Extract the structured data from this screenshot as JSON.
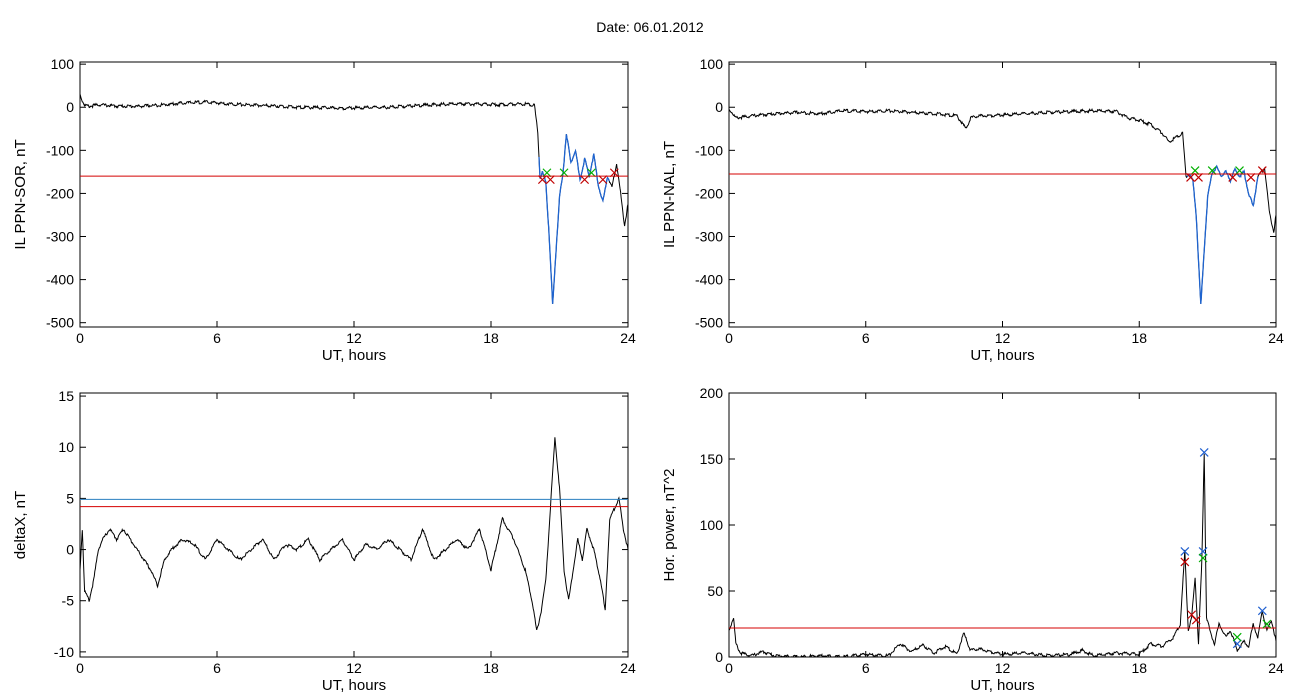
{
  "page": {
    "title": "Date:  06.01.2012"
  },
  "chart_data": [
    {
      "type": "line",
      "ylabel": "IL PPN-SOR, nT",
      "xlabel": "UT, hours",
      "xlim": [
        0,
        24
      ],
      "ylim": [
        -510,
        105
      ],
      "xticks": [
        0,
        6,
        12,
        18,
        24
      ],
      "yticks": [
        100,
        0,
        -100,
        -200,
        -300,
        -400,
        -500
      ],
      "colors": {
        "trace": "#000000",
        "highlight": "#1e64d0",
        "threshold": "#d40000",
        "mark_red": "#c00000",
        "mark_green": "#00b000",
        "mark_blue": "#2060d0"
      },
      "series": [
        {
          "x": [
            0,
            0.1,
            0.2,
            0.4,
            0.8,
            1.5,
            2.5,
            3.5,
            4.5,
            5.5,
            6.5,
            7.5,
            8.5,
            9.5,
            10.5,
            11.5,
            12.5,
            13.5,
            14.5,
            15.5,
            16.5,
            17.5,
            18.5,
            19.5,
            19.9,
            20.05,
            20.15,
            20.25,
            20.4,
            20.55,
            20.7,
            20.85,
            21.0,
            21.15,
            21.3,
            21.5,
            21.7,
            21.9,
            22.1,
            22.3,
            22.5,
            22.7,
            22.9,
            23.1,
            23.3,
            23.5,
            23.7,
            23.85,
            24.0
          ],
          "y": [
            30,
            15,
            5,
            2,
            6,
            3,
            2,
            5,
            10,
            12,
            8,
            5,
            3,
            0,
            -1,
            -2,
            -1,
            0,
            3,
            6,
            8,
            7,
            6,
            8,
            5,
            -60,
            -165,
            -150,
            -175,
            -300,
            -460,
            -330,
            -210,
            -155,
            -60,
            -130,
            -100,
            -170,
            -120,
            -160,
            -110,
            -180,
            -220,
            -160,
            -185,
            -130,
            -210,
            -275,
            -225
          ]
        }
      ],
      "threshold": -160,
      "highlight_from": 20.1
    },
    {
      "type": "line",
      "ylabel": "IL PPN-NAL, nT",
      "xlabel": "UT, hours",
      "xlim": [
        0,
        24
      ],
      "ylim": [
        -510,
        105
      ],
      "xticks": [
        0,
        6,
        12,
        18,
        24
      ],
      "yticks": [
        100,
        0,
        -100,
        -200,
        -300,
        -400,
        -500
      ],
      "series": [
        {
          "x": [
            0,
            0.1,
            0.3,
            1,
            2,
            3,
            4,
            5,
            6,
            7,
            8,
            9,
            10,
            10.4,
            10.6,
            11,
            12,
            13,
            14,
            15,
            16,
            17,
            17.5,
            18,
            18.5,
            19,
            19.3,
            19.6,
            19.9,
            20.05,
            20.2,
            20.35,
            20.5,
            20.7,
            20.85,
            21.0,
            21.2,
            21.4,
            21.6,
            21.8,
            22.0,
            22.2,
            22.4,
            22.6,
            22.8,
            23.0,
            23.2,
            23.5,
            23.7,
            23.9,
            24.0
          ],
          "y": [
            -5,
            -10,
            -25,
            -20,
            -15,
            -12,
            -15,
            -8,
            -10,
            -8,
            -12,
            -15,
            -20,
            -50,
            -25,
            -20,
            -18,
            -15,
            -12,
            -10,
            -8,
            -10,
            -25,
            -30,
            -40,
            -60,
            -80,
            -70,
            -60,
            -160,
            -155,
            -170,
            -250,
            -460,
            -330,
            -210,
            -150,
            -140,
            -160,
            -150,
            -170,
            -145,
            -160,
            -150,
            -200,
            -230,
            -160,
            -140,
            -240,
            -290,
            -250
          ]
        }
      ],
      "threshold": -155,
      "highlight_from": 20.1
    },
    {
      "type": "line",
      "ylabel": "deltaX, nT",
      "xlabel": "UT, hours",
      "xlim": [
        0,
        24
      ],
      "ylim": [
        -10.5,
        15.3
      ],
      "xticks": [
        0,
        6,
        12,
        18,
        24
      ],
      "yticks": [
        15,
        10,
        5,
        0,
        -5,
        -10
      ],
      "series": [
        {
          "x": [
            0,
            0.1,
            0.2,
            0.4,
            0.6,
            0.8,
            1,
            1.3,
            1.6,
            1.9,
            2.2,
            2.5,
            2.8,
            3.1,
            3.4,
            3.7,
            4,
            4.5,
            5,
            5.5,
            6,
            6.5,
            7,
            7.5,
            8,
            8.5,
            9,
            9.5,
            10,
            10.5,
            11,
            11.5,
            12,
            12.5,
            13,
            13.5,
            14,
            14.5,
            15,
            15.5,
            16,
            16.5,
            17,
            17.5,
            18,
            18.5,
            19,
            19.5,
            19.8,
            20,
            20.2,
            20.4,
            20.6,
            20.8,
            21.0,
            21.2,
            21.4,
            21.6,
            21.8,
            22.0,
            22.2,
            22.5,
            22.8,
            23.0,
            23.2,
            23.4,
            23.6,
            23.8,
            24.0
          ],
          "y": [
            -2,
            2,
            -4,
            -5,
            -3,
            0,
            1,
            2,
            1,
            2,
            1,
            0,
            -1,
            -2,
            -3.5,
            -1,
            0,
            1,
            0.5,
            -1,
            1,
            0,
            -1,
            0,
            1,
            -1,
            0.5,
            0,
            1,
            -1,
            0,
            1,
            -1,
            0.5,
            0,
            1,
            0,
            -1,
            2,
            -1,
            0,
            1,
            0,
            2,
            -2,
            3,
            1,
            -2,
            -5,
            -8,
            -6,
            -3,
            4,
            11,
            6,
            -2,
            -5,
            -2,
            1,
            -1,
            2,
            0,
            -3,
            -6,
            3,
            4,
            5,
            2,
            0
          ]
        }
      ],
      "hline_blue": 4.9,
      "hline_red": 4.2
    },
    {
      "type": "line",
      "ylabel": "Hor. power, nT^2",
      "xlabel": "UT, hours",
      "xlim": [
        0,
        24
      ],
      "ylim": [
        0,
        200
      ],
      "xticks": [
        0,
        6,
        12,
        18,
        24
      ],
      "yticks": [
        200,
        150,
        100,
        50,
        0
      ],
      "series": [
        {
          "x": [
            0,
            0.2,
            0.3,
            0.5,
            1,
            1.5,
            2,
            3,
            4,
            5,
            6,
            7,
            7.5,
            8,
            8.5,
            9,
            9.5,
            10,
            10.3,
            10.6,
            11,
            12,
            13,
            14,
            15,
            15.5,
            16,
            17,
            18,
            18.5,
            19,
            19.5,
            19.8,
            20.0,
            20.15,
            20.3,
            20.45,
            20.6,
            20.75,
            20.85,
            20.95,
            21.1,
            21.3,
            21.5,
            21.8,
            22.0,
            22.3,
            22.6,
            22.8,
            23.0,
            23.2,
            23.4,
            23.6,
            23.8,
            24.0
          ],
          "y": [
            20,
            30,
            10,
            3,
            1,
            4,
            1,
            0,
            1,
            0,
            2,
            1,
            10,
            4,
            9,
            3,
            8,
            2,
            18,
            5,
            6,
            2,
            3,
            1,
            2,
            5,
            1,
            3,
            2,
            10,
            8,
            15,
            25,
            80,
            20,
            30,
            60,
            10,
            75,
            155,
            30,
            20,
            10,
            25,
            15,
            20,
            5,
            12,
            8,
            25,
            15,
            35,
            20,
            28,
            12
          ]
        }
      ],
      "threshold": 22,
      "markers": {
        "blue": [
          [
            20.0,
            80
          ],
          [
            20.8,
            80
          ],
          [
            20.85,
            155
          ],
          [
            22.3,
            10
          ],
          [
            23.4,
            35
          ]
        ],
        "red": [
          [
            20.0,
            72
          ],
          [
            20.3,
            32
          ],
          [
            20.5,
            28
          ]
        ],
        "green": [
          [
            20.8,
            75
          ],
          [
            22.3,
            15
          ],
          [
            23.6,
            25
          ]
        ]
      }
    }
  ]
}
